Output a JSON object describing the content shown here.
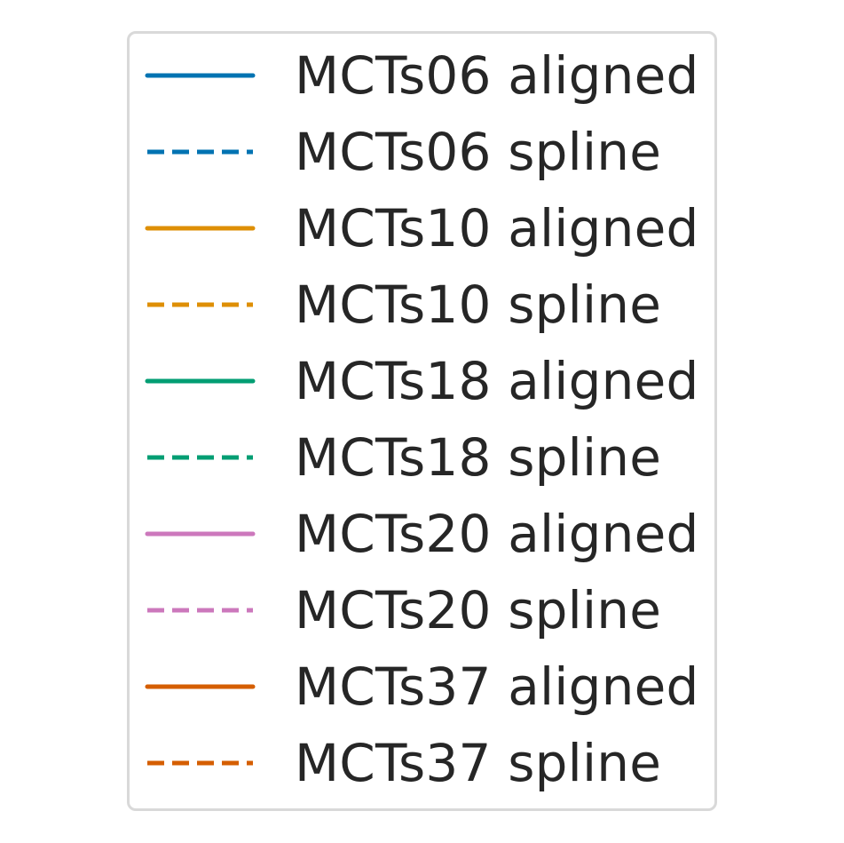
{
  "chart_data": {
    "type": "line",
    "title": "",
    "xlabel": "",
    "ylabel": "",
    "legend_position": "center",
    "series": [
      {
        "name": "MCTs06 aligned",
        "color": "#0173b2",
        "linestyle": "solid"
      },
      {
        "name": "MCTs06 spline",
        "color": "#0173b2",
        "linestyle": "dashed"
      },
      {
        "name": "MCTs10 aligned",
        "color": "#de8f05",
        "linestyle": "solid"
      },
      {
        "name": "MCTs10 spline",
        "color": "#de8f05",
        "linestyle": "dashed"
      },
      {
        "name": "MCTs18 aligned",
        "color": "#029e73",
        "linestyle": "solid"
      },
      {
        "name": "MCTs18 spline",
        "color": "#029e73",
        "linestyle": "dashed"
      },
      {
        "name": "MCTs20 aligned",
        "color": "#cc78bc",
        "linestyle": "solid"
      },
      {
        "name": "MCTs20 spline",
        "color": "#cc78bc",
        "linestyle": "dashed"
      },
      {
        "name": "MCTs37 aligned",
        "color": "#d55e00",
        "linestyle": "solid"
      },
      {
        "name": "MCTs37 spline",
        "color": "#d55e00",
        "linestyle": "dashed"
      }
    ]
  }
}
